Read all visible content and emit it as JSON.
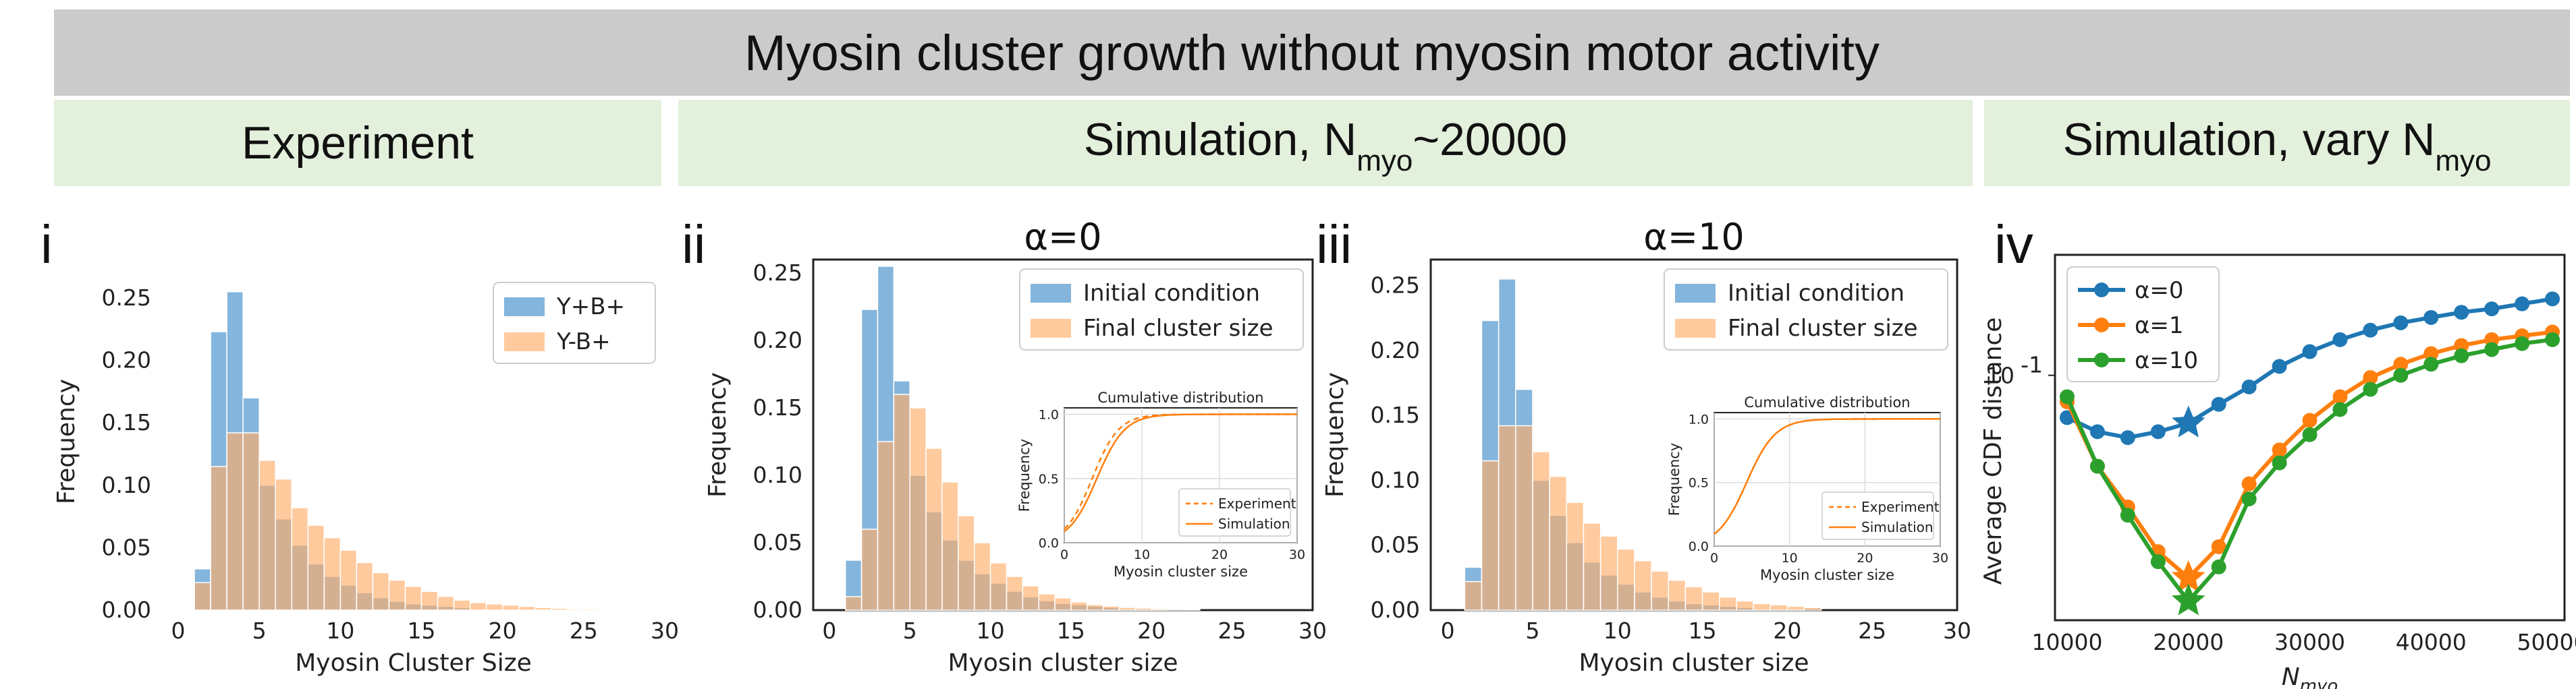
{
  "header": {
    "title": "Myosin cluster growth without myosin motor activity",
    "sections": [
      {
        "label": "Experiment"
      },
      {
        "label": "Simulation, N",
        "sub": "myo",
        "suffix": "~20000"
      },
      {
        "label": "Simulation, vary N",
        "sub": "myo"
      }
    ]
  },
  "colors": {
    "blue": "#6fa8d6",
    "orange": "#ffae6a",
    "line_blue": "#1f77b4",
    "line_orange": "#ff7f0e",
    "line_green": "#2ca02c"
  },
  "chart_data": [
    {
      "panel_label": "i",
      "type": "bar",
      "title": "",
      "xlabel": "Myosin Cluster Size",
      "ylabel": "Frequency",
      "xlim": [
        -1,
        30
      ],
      "ylim": [
        0,
        0.27
      ],
      "xticks": [
        "0",
        "5",
        "10",
        "15",
        "20",
        "25",
        "30"
      ],
      "yticks": [
        "0.00",
        "0.05",
        "0.10",
        "0.15",
        "0.20",
        "0.25"
      ],
      "legend_position": "top-right",
      "bin_starts": [
        1,
        2,
        3,
        4,
        5,
        6,
        7,
        8,
        9,
        10,
        11,
        12,
        13,
        14,
        15,
        16,
        17,
        18,
        19,
        20,
        21,
        22,
        23,
        24,
        25,
        26,
        27,
        28,
        29
      ],
      "series": [
        {
          "name": "Y+B+",
          "color": "#6fa8d6",
          "values": [
            0.033,
            0.223,
            0.255,
            0.17,
            0.1,
            0.073,
            0.052,
            0.037,
            0.027,
            0.02,
            0.014,
            0.01,
            0.007,
            0.005,
            0.004,
            0.003,
            0.002,
            0.001,
            0.001,
            0.001,
            0,
            0,
            0,
            0,
            0,
            0,
            0,
            0,
            0
          ]
        },
        {
          "name": "Y-B+",
          "color": "#ffae6a",
          "values": [
            0.022,
            0.115,
            0.142,
            0.142,
            0.12,
            0.105,
            0.082,
            0.068,
            0.058,
            0.048,
            0.038,
            0.03,
            0.024,
            0.019,
            0.015,
            0.011,
            0.008,
            0.006,
            0.005,
            0.004,
            0.003,
            0.002,
            0.0015,
            0.001,
            0.001,
            0.0008,
            0.0005,
            0.0004,
            0.0003
          ]
        }
      ]
    },
    {
      "panel_label": "ii",
      "type": "bar",
      "title": "α=0",
      "xlabel": "Myosin cluster size",
      "ylabel": "Frequency",
      "xlim": [
        -1,
        30
      ],
      "ylim": [
        0,
        0.26
      ],
      "xticks": [
        "0",
        "5",
        "10",
        "15",
        "20",
        "25",
        "30"
      ],
      "yticks": [
        "0.00",
        "0.05",
        "0.10",
        "0.15",
        "0.20",
        "0.25"
      ],
      "legend_position": "top-right",
      "bin_starts": [
        1,
        2,
        3,
        4,
        5,
        6,
        7,
        8,
        9,
        10,
        11,
        12,
        13,
        14,
        15,
        16,
        17,
        18,
        19,
        20,
        21,
        22
      ],
      "series": [
        {
          "name": "Initial condition",
          "color": "#6fa8d6",
          "values": [
            0.037,
            0.223,
            0.255,
            0.17,
            0.1,
            0.073,
            0.052,
            0.037,
            0.027,
            0.02,
            0.014,
            0.01,
            0.007,
            0.005,
            0.004,
            0.003,
            0.002,
            0.001,
            0.001,
            0.001,
            0,
            0
          ]
        },
        {
          "name": "Final cluster size",
          "color": "#ffae6a",
          "values": [
            0.01,
            0.06,
            0.125,
            0.16,
            0.15,
            0.12,
            0.095,
            0.07,
            0.05,
            0.035,
            0.025,
            0.018,
            0.012,
            0.009,
            0.006,
            0.004,
            0.003,
            0.002,
            0.0015,
            0.001,
            0.0008,
            0.0005
          ]
        }
      ],
      "inset": {
        "title": "Cumulative distribution",
        "xlabel": "Myosin cluster size",
        "ylabel": "Frequency",
        "xlim": [
          0,
          30
        ],
        "ylim": [
          0,
          1.05
        ],
        "xticks": [
          "0",
          "10",
          "20",
          "30"
        ],
        "yticks": [
          "0.0",
          "0.5",
          "1.0"
        ],
        "series": [
          {
            "name": "Experiment",
            "style": "dashed",
            "shift": 3.6,
            "scale": 1.7
          },
          {
            "name": "Simulation",
            "style": "solid",
            "shift": 4.2,
            "scale": 1.8
          }
        ]
      }
    },
    {
      "panel_label": "iii",
      "type": "bar",
      "title": "α=10",
      "xlabel": "Myosin cluster size",
      "ylabel": "Frequency",
      "xlim": [
        -1,
        30
      ],
      "ylim": [
        0,
        0.27
      ],
      "xticks": [
        "0",
        "5",
        "10",
        "15",
        "20",
        "25",
        "30"
      ],
      "yticks": [
        "0.00",
        "0.05",
        "0.10",
        "0.15",
        "0.20",
        "0.25"
      ],
      "legend_position": "top-right",
      "bin_starts": [
        1,
        2,
        3,
        4,
        5,
        6,
        7,
        8,
        9,
        10,
        11,
        12,
        13,
        14,
        15,
        16,
        17,
        18,
        19,
        20,
        21
      ],
      "series": [
        {
          "name": "Initial condition",
          "color": "#6fa8d6",
          "values": [
            0.033,
            0.223,
            0.255,
            0.17,
            0.1,
            0.073,
            0.052,
            0.037,
            0.027,
            0.02,
            0.014,
            0.01,
            0.007,
            0.005,
            0.004,
            0.003,
            0.002,
            0.001,
            0.001,
            0.001,
            0
          ]
        },
        {
          "name": "Final cluster size",
          "color": "#ffae6a",
          "values": [
            0.022,
            0.115,
            0.142,
            0.142,
            0.122,
            0.103,
            0.083,
            0.067,
            0.057,
            0.047,
            0.038,
            0.03,
            0.023,
            0.018,
            0.014,
            0.01,
            0.007,
            0.005,
            0.004,
            0.003,
            0.002
          ]
        }
      ],
      "inset": {
        "title": "Cumulative distribution",
        "xlabel": "Myosin cluster size",
        "ylabel": "Frequency",
        "xlim": [
          0,
          30
        ],
        "ylim": [
          0,
          1.05
        ],
        "xticks": [
          "0",
          "10",
          "20",
          "30"
        ],
        "yticks": [
          "0.0",
          "0.5",
          "1.0"
        ],
        "series": [
          {
            "name": "Experiment",
            "style": "dashed",
            "shift": 4.3,
            "scale": 1.9
          },
          {
            "name": "Simulation",
            "style": "solid",
            "shift": 4.3,
            "scale": 1.9
          }
        ]
      }
    },
    {
      "panel_label": "iv",
      "type": "line",
      "title": "",
      "xlabel": "N",
      "xlabel_sub": "myo",
      "ylabel": "Average CDF distance",
      "yscale": "log",
      "xlim": [
        9000,
        51000
      ],
      "ylim": [
        0.034,
        0.17
      ],
      "xticks": [
        "10000",
        "20000",
        "30000",
        "40000",
        "50000"
      ],
      "ytick_label": "10",
      "ytick_exp": "-1",
      "ytick_value": 0.1,
      "legend_position": "top-left",
      "x": [
        10000,
        12500,
        15000,
        17500,
        20000,
        22500,
        25000,
        27500,
        30000,
        32500,
        35000,
        37500,
        40000,
        42500,
        45000,
        47500,
        50000
      ],
      "series": [
        {
          "name": "α=0",
          "color": "#1f77b4",
          "values": [
            0.083,
            0.078,
            0.076,
            0.078,
            0.081,
            0.088,
            0.095,
            0.104,
            0.111,
            0.117,
            0.122,
            0.126,
            0.129,
            0.132,
            0.134,
            0.137,
            0.14
          ],
          "star_at": 20000
        },
        {
          "name": "α=1",
          "color": "#ff7f0e",
          "values": [
            0.089,
            0.067,
            0.056,
            0.046,
            0.041,
            0.047,
            0.062,
            0.072,
            0.082,
            0.091,
            0.099,
            0.105,
            0.11,
            0.114,
            0.117,
            0.119,
            0.121
          ],
          "star_at": 20000
        },
        {
          "name": "α=10",
          "color": "#2ca02c",
          "values": [
            0.091,
            0.067,
            0.054,
            0.044,
            0.037,
            0.043,
            0.058,
            0.068,
            0.077,
            0.086,
            0.094,
            0.1,
            0.105,
            0.109,
            0.112,
            0.115,
            0.117
          ],
          "star_at": 20000
        }
      ]
    }
  ]
}
